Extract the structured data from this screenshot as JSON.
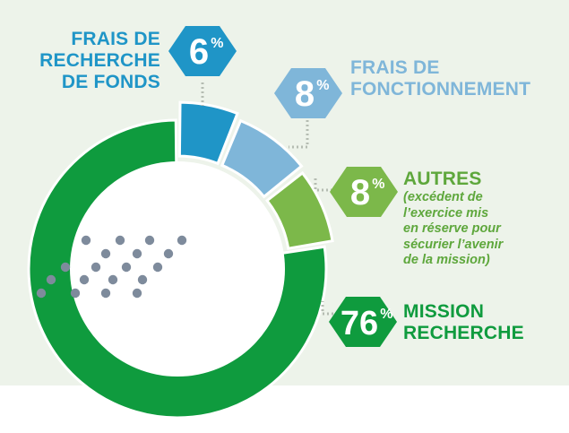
{
  "chart_data": {
    "type": "pie",
    "title": "",
    "slices": [
      {
        "label_lines": [
          "FRAIS DE",
          "RECHERCHE",
          "DE FONDS"
        ],
        "value": 6,
        "percent_label": "6",
        "color": "#1f95c7"
      },
      {
        "label_lines": [
          "FRAIS DE",
          "FONCTIONNEMENT"
        ],
        "value": 8,
        "percent_label": "8",
        "color": "#7fb6d9"
      },
      {
        "label_lines": [
          "AUTRES"
        ],
        "note_lines": [
          "(excédent de",
          "l’exercice mis",
          "en réserve pour",
          "sécurier l’avenir",
          "de la mission)"
        ],
        "value": 8,
        "percent_label": "8",
        "color": "#7cb84a"
      },
      {
        "label_lines": [
          "MISSION",
          "RECHERCHE"
        ],
        "value": 76,
        "percent_label": "76",
        "color": "#0f9b3e"
      }
    ],
    "percent_sign": "%"
  },
  "colors": {
    "background_panel": "#edf3ea",
    "dots": "#7e8b9c",
    "leader_lines": "#b5bcb2",
    "label_recherche_fonds": "#1f95c7",
    "label_fonctionnement": "#7fb6d9",
    "label_autres": "#5ea73c",
    "label_mission": "#0f9b3e"
  }
}
